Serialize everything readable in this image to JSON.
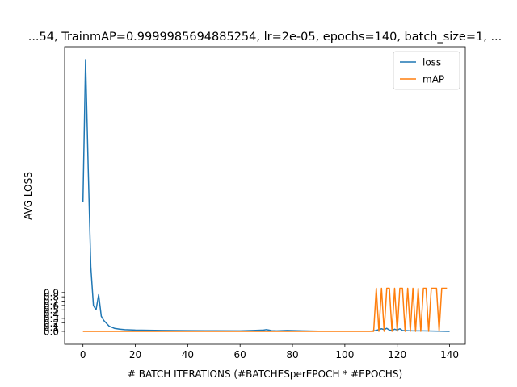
{
  "chart_data": {
    "type": "line",
    "title": "...54, TrainmAP=0.9999985694885254, lr=2e-05, epochs=140, batch_size=1, ...",
    "xlabel": "# BATCH ITERATIONS (#BATCHESperEPOCH * #EPOCHS)",
    "ylabel": "AVG LOSS",
    "xlim": [
      -7,
      146
    ],
    "ylim": [
      -0.3,
      6.6
    ],
    "xticks": [
      0,
      20,
      40,
      60,
      80,
      100,
      120,
      140
    ],
    "yticks": [
      0.0,
      0.1,
      0.2,
      0.3,
      0.4,
      0.5,
      0.6,
      0.7,
      0.8,
      0.9
    ],
    "ytick_labels": [
      "0.0",
      "0.1",
      "0.2",
      "0.3",
      "0.4",
      "0.5",
      "0.6",
      "0.7",
      "0.8",
      "0.9"
    ],
    "grid": false,
    "legend_position": "top-right",
    "series": [
      {
        "name": "loss",
        "color": "#1f77b4",
        "x": [
          0,
          1,
          2,
          3,
          4,
          5,
          6,
          7,
          8,
          10,
          12,
          14,
          16,
          20,
          25,
          30,
          40,
          50,
          60,
          65,
          69,
          70,
          71,
          72,
          74,
          78,
          84,
          90,
          100,
          110,
          112,
          114,
          115,
          116,
          117,
          118,
          119,
          120,
          121,
          122,
          124,
          126,
          130,
          140
        ],
        "y": [
          3.0,
          6.3,
          3.8,
          1.5,
          0.6,
          0.5,
          0.85,
          0.35,
          0.25,
          0.12,
          0.07,
          0.05,
          0.04,
          0.03,
          0.025,
          0.02,
          0.015,
          0.012,
          0.01,
          0.02,
          0.03,
          0.04,
          0.03,
          0.015,
          0.01,
          0.02,
          0.01,
          0.005,
          0.005,
          0.005,
          0.02,
          0.06,
          0.04,
          0.07,
          0.03,
          0.02,
          0.05,
          0.03,
          0.06,
          0.02,
          0.015,
          0.01,
          0.01,
          0.0
        ]
      },
      {
        "name": "mAP",
        "color": "#ff7f0e",
        "x": [
          0,
          111,
          112,
          113,
          114,
          115,
          116,
          117,
          118,
          119,
          120,
          121,
          122,
          123,
          124,
          125,
          126,
          127,
          128,
          129,
          130,
          131,
          132,
          133,
          134,
          135,
          136,
          137,
          138,
          139
        ],
        "y": [
          0.0,
          0.0,
          1.0,
          0.0,
          1.0,
          0.0,
          1.0,
          1.0,
          0.0,
          1.0,
          0.0,
          1.0,
          1.0,
          0.0,
          1.0,
          0.0,
          1.0,
          0.0,
          1.0,
          0.0,
          1.0,
          1.0,
          0.0,
          1.0,
          1.0,
          1.0,
          0.0,
          1.0,
          1.0,
          1.0
        ]
      }
    ]
  }
}
